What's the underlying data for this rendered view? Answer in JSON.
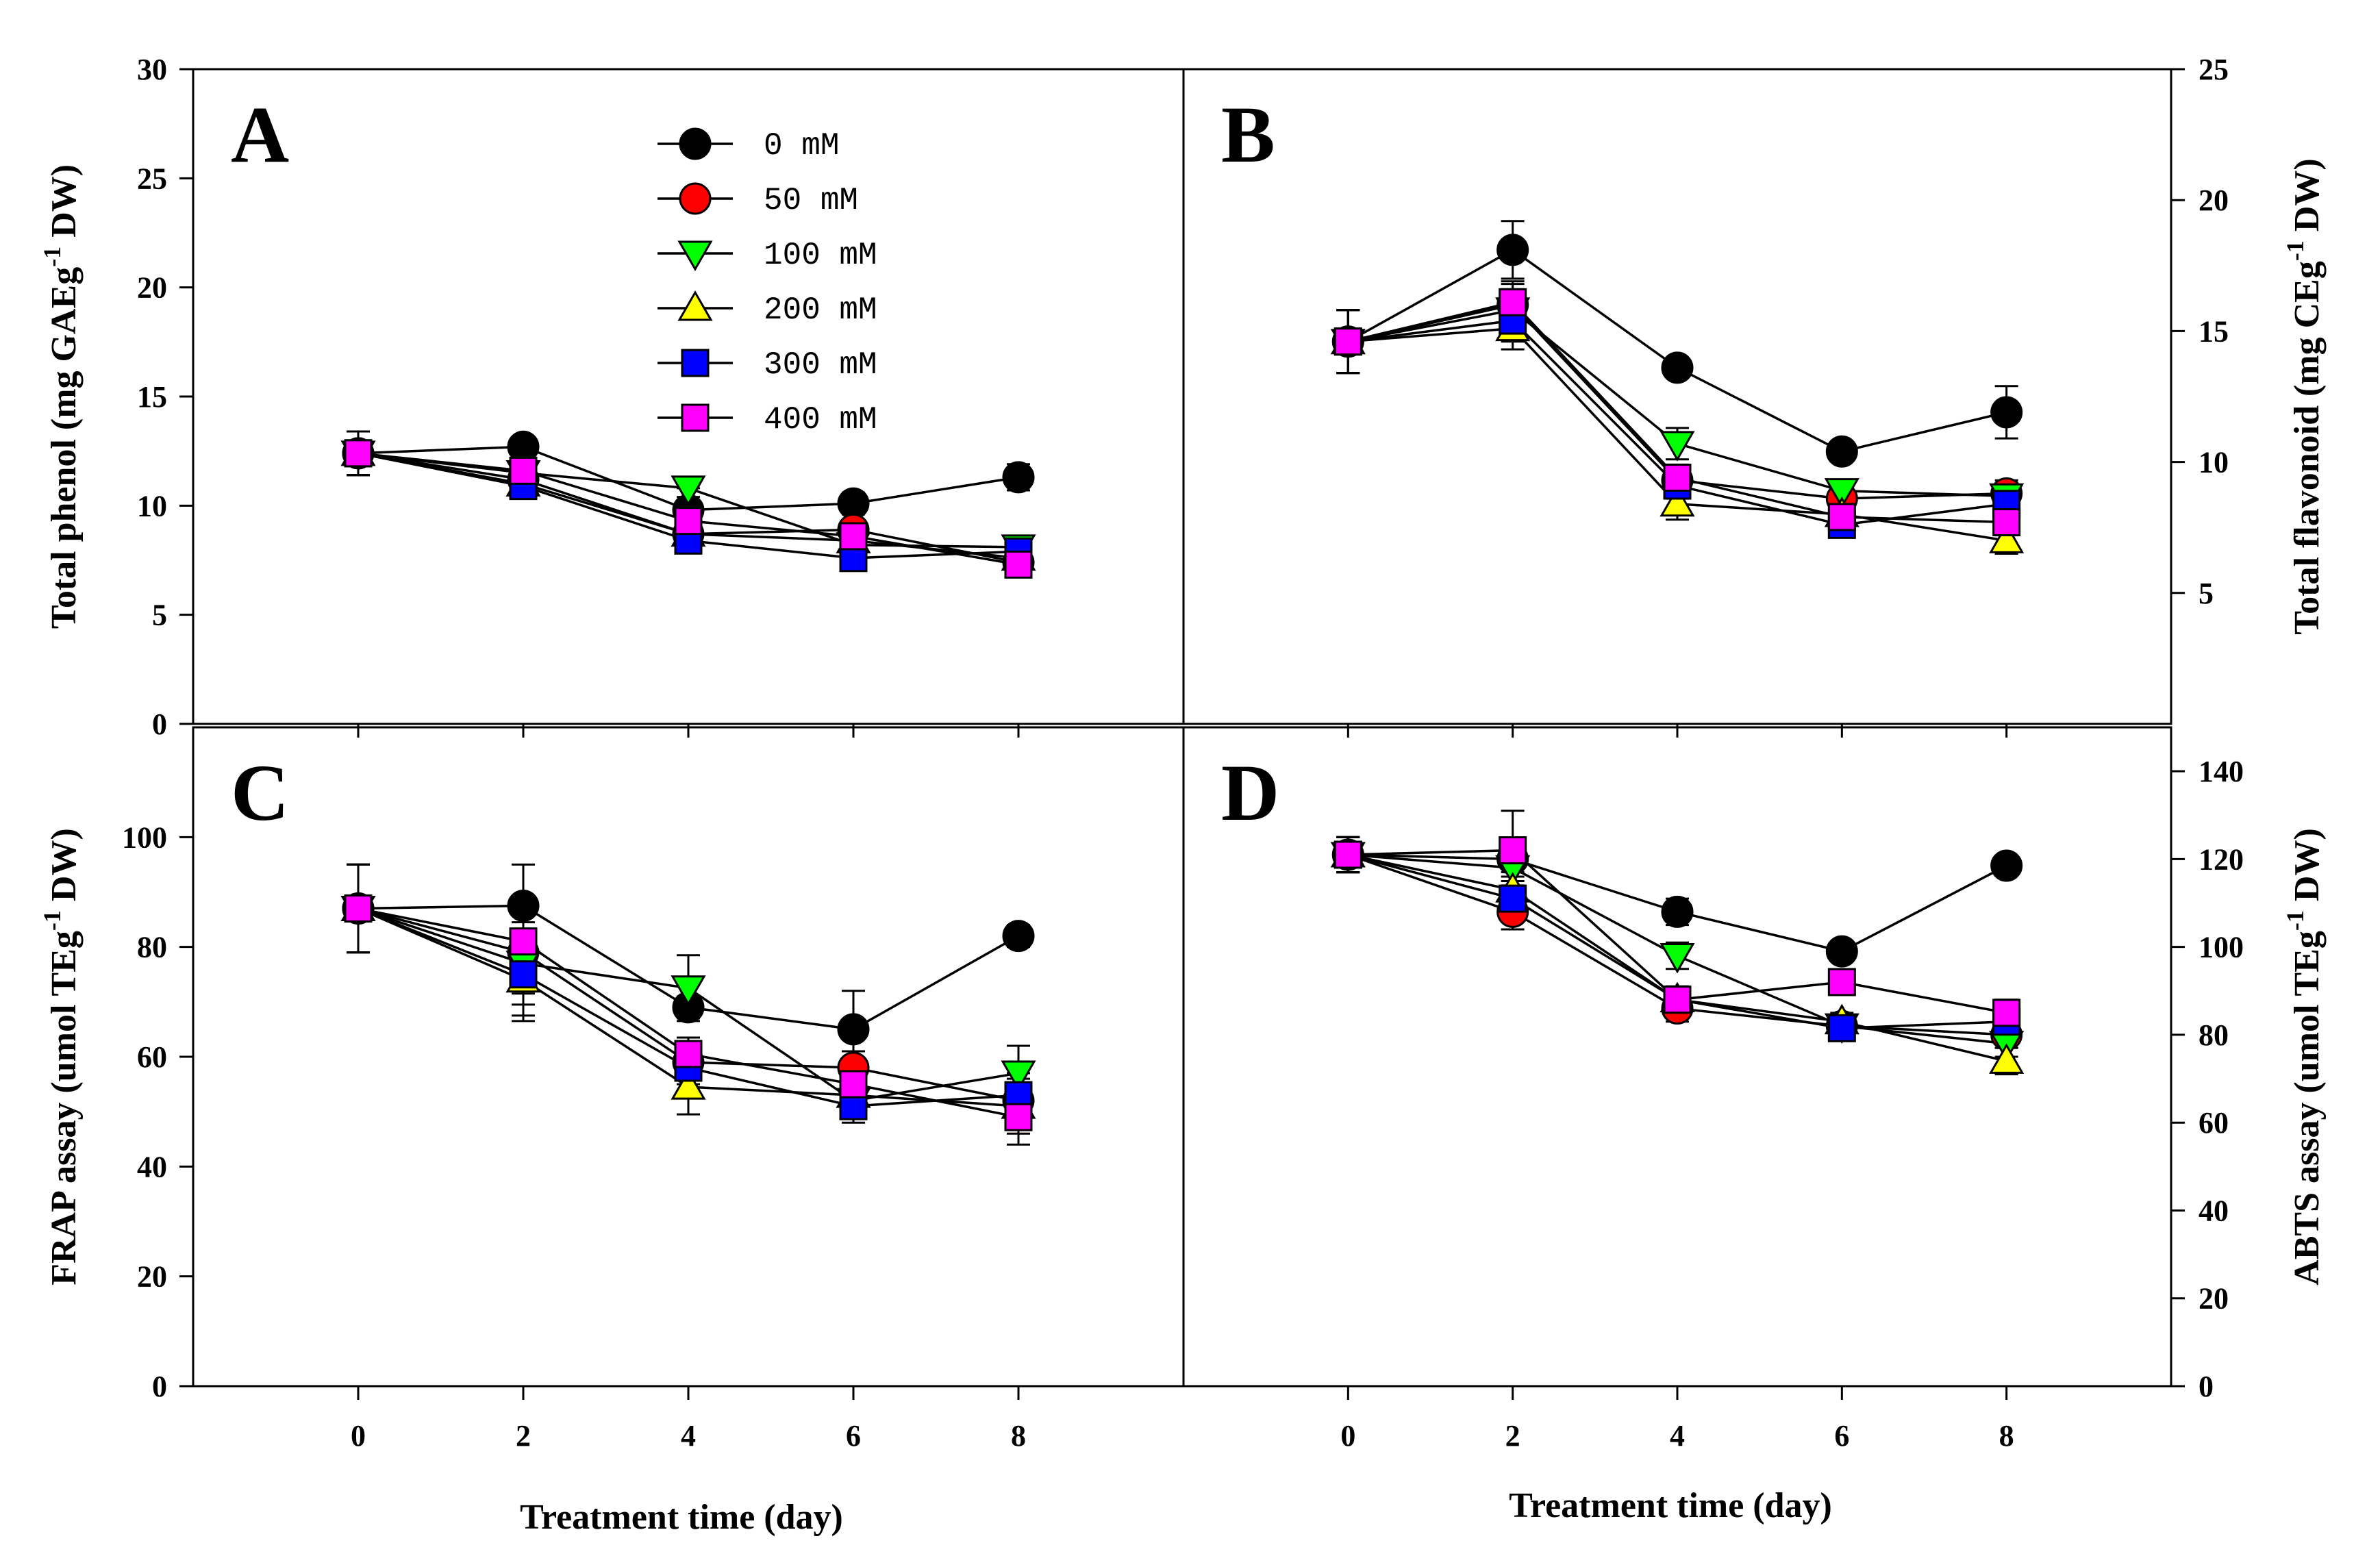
{
  "figure": {
    "x_axis_title": "Treatment time (day)",
    "x_ticks": [
      0,
      2,
      4,
      6,
      8
    ],
    "x_range": [
      -2,
      10
    ]
  },
  "legend": [
    {
      "label": "0 mM",
      "marker": "circle",
      "color": "#000000"
    },
    {
      "label": "50 mM",
      "marker": "circle",
      "color": "#ff0000"
    },
    {
      "label": "100 mM",
      "marker": "triangle-down",
      "color": "#00ff00"
    },
    {
      "label": "200 mM",
      "marker": "triangle-up",
      "color": "#ffff00"
    },
    {
      "label": "300 mM",
      "marker": "square",
      "color": "#0000ff"
    },
    {
      "label": "400 mM",
      "marker": "square",
      "color": "#ff00ff"
    }
  ],
  "chart_data": [
    {
      "panel": "A",
      "type": "line",
      "ylabel_main": "Total phenol (mg GAEg",
      "ylabel_sup": "-1",
      "ylabel_end": " DW)",
      "axis_side": "left",
      "ylim": [
        0,
        30
      ],
      "yticks": [
        0,
        5,
        10,
        15,
        20,
        25,
        30
      ],
      "x": [
        0,
        2,
        4,
        6,
        8
      ],
      "series": [
        {
          "name": "0 mM",
          "values": [
            12.4,
            12.7,
            9.8,
            10.1,
            11.3
          ],
          "errors": [
            1.0,
            0.4,
            1.0,
            0.5,
            0.6
          ]
        },
        {
          "name": "50 mM",
          "values": [
            12.4,
            11.2,
            8.7,
            8.9,
            7.4
          ],
          "errors": [
            1.0,
            0.4,
            0.8,
            0.4,
            0.3
          ]
        },
        {
          "name": "100 mM",
          "values": [
            12.4,
            11.5,
            10.8,
            8.2,
            8.1
          ],
          "errors": [
            1.0,
            0.4,
            0.4,
            0.4,
            0.5
          ]
        },
        {
          "name": "200 mM",
          "values": [
            12.4,
            11.0,
            8.7,
            8.4,
            7.6
          ],
          "errors": [
            1.0,
            0.4,
            0.6,
            0.4,
            0.4
          ]
        },
        {
          "name": "300 mM",
          "values": [
            12.4,
            10.9,
            8.4,
            7.6,
            7.9
          ],
          "errors": [
            1.0,
            0.4,
            0.5,
            0.4,
            0.4
          ]
        },
        {
          "name": "400 mM",
          "values": [
            12.4,
            11.6,
            9.3,
            8.6,
            7.3
          ],
          "errors": [
            1.0,
            0.4,
            0.6,
            0.5,
            0.4
          ]
        }
      ]
    },
    {
      "panel": "B",
      "type": "line",
      "ylabel_main": "Total flavonoid (mg CEg",
      "ylabel_sup": "-1",
      "ylabel_end": " DW)",
      "axis_side": "right",
      "ylim": [
        0,
        25
      ],
      "yticks": [
        5,
        10,
        15,
        20,
        25
      ],
      "x": [
        0,
        2,
        4,
        6,
        8
      ],
      "series": [
        {
          "name": "0 mM",
          "values": [
            14.6,
            18.1,
            13.6,
            10.4,
            11.9
          ],
          "errors": [
            1.2,
            1.1,
            0.3,
            0.3,
            1.0
          ]
        },
        {
          "name": "50 mM",
          "values": [
            14.6,
            16.0,
            9.3,
            8.6,
            8.8
          ],
          "errors": [
            1.2,
            0.8,
            0.5,
            0.4,
            0.5
          ]
        },
        {
          "name": "100 mM",
          "values": [
            14.6,
            15.8,
            10.7,
            8.9,
            8.7
          ],
          "errors": [
            1.2,
            0.8,
            0.6,
            0.4,
            0.5
          ]
        },
        {
          "name": "200 mM",
          "values": [
            14.6,
            15.1,
            8.4,
            8.0,
            7.0
          ],
          "errors": [
            1.2,
            0.8,
            0.6,
            0.4,
            0.5
          ]
        },
        {
          "name": "300 mM",
          "values": [
            14.6,
            15.4,
            9.1,
            7.6,
            8.4
          ],
          "errors": [
            1.2,
            0.8,
            0.5,
            0.4,
            0.5
          ]
        },
        {
          "name": "400 mM",
          "values": [
            14.6,
            16.1,
            9.4,
            7.9,
            7.7
          ],
          "errors": [
            1.2,
            0.8,
            0.5,
            0.4,
            0.5
          ]
        }
      ]
    },
    {
      "panel": "C",
      "type": "line",
      "ylabel_main": "FRAP assay (umol TEg",
      "ylabel_sup": "-1",
      "ylabel_end": " DW)",
      "axis_side": "left",
      "ylim": [
        0,
        120
      ],
      "yticks": [
        0,
        20,
        40,
        60,
        80,
        100
      ],
      "x": [
        0,
        2,
        4,
        6,
        8
      ],
      "series": [
        {
          "name": "0 mM",
          "values": [
            87,
            87.5,
            69,
            65,
            82
          ],
          "errors": [
            8,
            7.5,
            2,
            7,
            2
          ]
        },
        {
          "name": "50 mM",
          "values": [
            87,
            79,
            59,
            58,
            52
          ],
          "errors": [
            8,
            7.5,
            3,
            3,
            3
          ]
        },
        {
          "name": "100 mM",
          "values": [
            87,
            77,
            72.5,
            52,
            57
          ],
          "errors": [
            8,
            7.5,
            6,
            3,
            5
          ]
        },
        {
          "name": "200 mM",
          "values": [
            87,
            74,
            54.5,
            53,
            51
          ],
          "errors": [
            8,
            7.5,
            5,
            3,
            5
          ]
        },
        {
          "name": "300 mM",
          "values": [
            87,
            75,
            58,
            51,
            53
          ],
          "errors": [
            8,
            7.5,
            3,
            3,
            4
          ]
        },
        {
          "name": "400 mM",
          "values": [
            87,
            81,
            60.5,
            55,
            49
          ],
          "errors": [
            8,
            7.5,
            3,
            3,
            5
          ]
        }
      ]
    },
    {
      "panel": "D",
      "type": "line",
      "ylabel_main": "ABTS assay (umol TEg",
      "ylabel_sup": "-1",
      "ylabel_end": " DW)",
      "axis_side": "right",
      "ylim": [
        0,
        150
      ],
      "yticks": [
        0,
        20,
        40,
        60,
        80,
        100,
        120,
        140
      ],
      "x": [
        0,
        2,
        4,
        6,
        8
      ],
      "series": [
        {
          "name": "0 mM",
          "values": [
            121,
            120,
            108,
            99,
            118.5
          ],
          "errors": [
            4,
            4,
            3,
            2,
            2
          ]
        },
        {
          "name": "50 mM",
          "values": [
            121,
            108,
            86,
            82,
            80
          ],
          "errors": [
            4,
            4,
            3,
            2,
            3
          ]
        },
        {
          "name": "100 mM",
          "values": [
            121,
            118,
            98,
            82,
            78
          ],
          "errors": [
            4,
            4,
            3,
            2,
            3
          ]
        },
        {
          "name": "200 mM",
          "values": [
            121,
            113,
            88,
            83,
            74
          ],
          "errors": [
            4,
            4,
            3,
            2,
            3
          ]
        },
        {
          "name": "300 mM",
          "values": [
            121,
            111,
            88,
            81.5,
            83
          ],
          "errors": [
            4,
            4,
            3,
            2,
            3
          ]
        },
        {
          "name": "400 mM",
          "values": [
            121,
            122,
            88,
            92,
            85
          ],
          "errors": [
            4,
            9,
            3,
            2,
            3
          ]
        }
      ]
    }
  ]
}
